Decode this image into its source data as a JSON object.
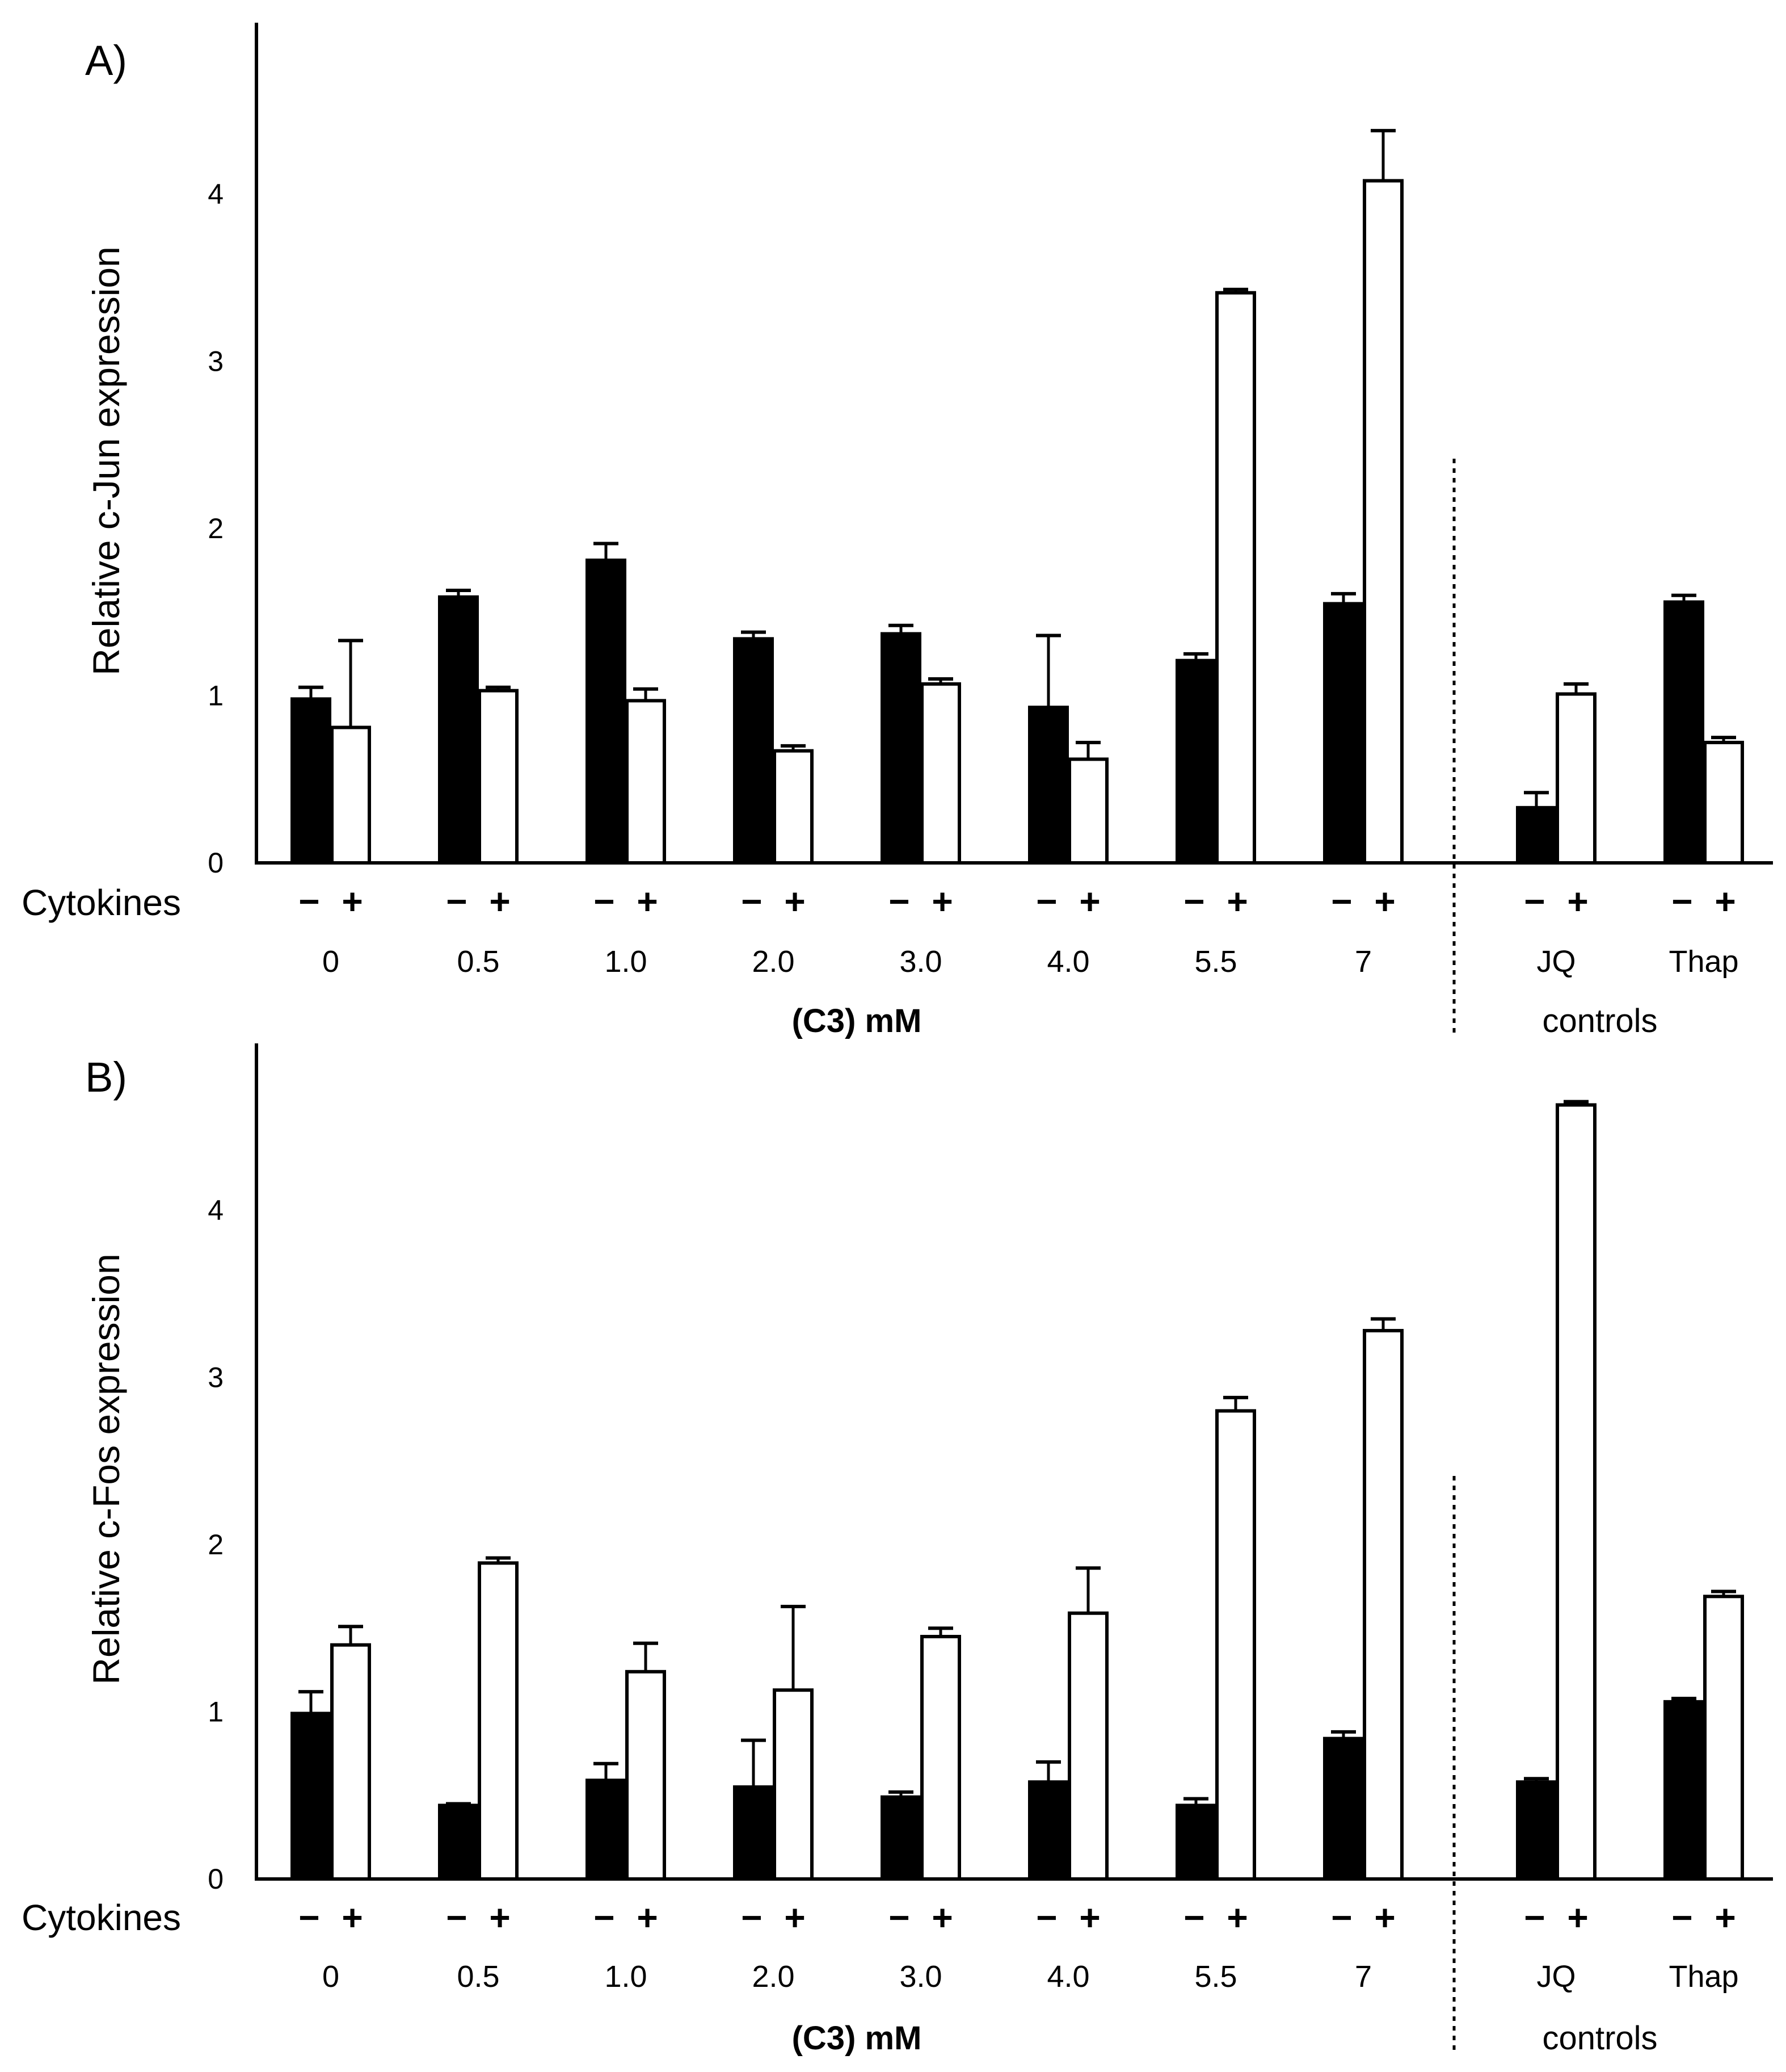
{
  "chart_data": [
    {
      "type": "bar",
      "panel_label": "A)",
      "ylabel": "Relative c-Jun expression",
      "ylim": [
        0,
        5
      ],
      "yticks": [
        "0",
        "1",
        "2",
        "3",
        "4"
      ],
      "row_label": "Cytokines",
      "categories": [
        "0",
        "0.5",
        "1.0",
        "2.0",
        "3.0",
        "4.0",
        "5.5",
        "7",
        "JQ",
        "Thap"
      ],
      "cytokine_signs": [
        "−",
        "+"
      ],
      "series": [
        {
          "name": "−",
          "fill": "#000000",
          "values": [
            0.98,
            1.59,
            1.81,
            1.34,
            1.37,
            0.93,
            1.21,
            1.55,
            0.33,
            1.56
          ],
          "errors": [
            0.07,
            0.04,
            0.1,
            0.04,
            0.05,
            0.43,
            0.04,
            0.06,
            0.09,
            0.04
          ]
        },
        {
          "name": "+",
          "fill": "#ffffff",
          "values": [
            0.81,
            1.03,
            0.97,
            0.67,
            1.07,
            0.62,
            3.41,
            4.08,
            1.01,
            0.72
          ],
          "errors": [
            0.52,
            0.02,
            0.07,
            0.03,
            0.03,
            0.1,
            0.02,
            0.3,
            0.06,
            0.03
          ]
        }
      ],
      "group_labels": {
        "concentration": "(C3) mM",
        "controls": "controls"
      }
    },
    {
      "type": "bar",
      "panel_label": "B)",
      "ylabel": "Relative c-Fos expression",
      "ylim": [
        0,
        5
      ],
      "yticks": [
        "0",
        "1",
        "2",
        "3",
        "4"
      ],
      "row_label": "Cytokines",
      "categories": [
        "0",
        "0.5",
        "1.0",
        "2.0",
        "3.0",
        "4.0",
        "5.5",
        "7",
        "JQ",
        "Thap"
      ],
      "cytokine_signs": [
        "−",
        "+"
      ],
      "series": [
        {
          "name": "−",
          "fill": "#000000",
          "values": [
            0.99,
            0.44,
            0.59,
            0.55,
            0.49,
            0.58,
            0.44,
            0.84,
            0.58,
            1.06
          ],
          "errors": [
            0.13,
            0.01,
            0.1,
            0.28,
            0.03,
            0.12,
            0.04,
            0.04,
            0.02,
            0.02
          ]
        },
        {
          "name": "+",
          "fill": "#ffffff",
          "values": [
            1.4,
            1.89,
            1.24,
            1.13,
            1.45,
            1.59,
            2.8,
            3.28,
            4.63,
            1.69
          ],
          "errors": [
            0.11,
            0.03,
            0.17,
            0.5,
            0.05,
            0.27,
            0.08,
            0.07,
            0.02,
            0.03
          ]
        }
      ],
      "group_labels": {
        "concentration": "(C3) mM",
        "controls": "controls"
      }
    }
  ]
}
